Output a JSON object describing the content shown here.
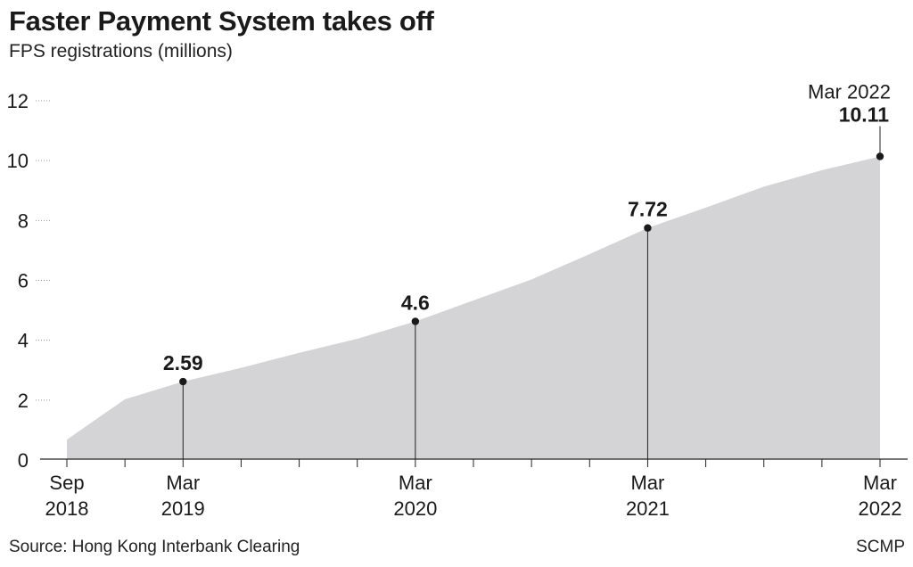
{
  "chart": {
    "title": "Faster Payment System takes off",
    "subtitle": "FPS registrations (millions)",
    "source": "Source: Hong Kong Interbank Clearing",
    "credit": "SCMP"
  },
  "colors": {
    "area_fill": "#d4d4d6",
    "marker": "#1a1a1a",
    "text": "#1a1a1a",
    "gridline": "#9a9a9a"
  },
  "chart_data": {
    "type": "area",
    "series": [
      {
        "x": [
          "2018-09",
          "2018-12",
          "2019-03",
          "2019-06",
          "2019-09",
          "2019-12",
          "2020-03",
          "2020-06",
          "2020-09",
          "2020-12",
          "2021-03",
          "2021-06",
          "2021-09",
          "2021-12",
          "2022-03"
        ],
        "values": [
          0.65,
          2.0,
          2.59,
          3.05,
          3.55,
          4.02,
          4.6,
          5.3,
          6.0,
          6.85,
          7.72,
          8.4,
          9.1,
          9.65,
          10.11
        ]
      }
    ],
    "ylim": [
      0,
      12
    ],
    "y_ticks": [
      0,
      2,
      4,
      6,
      8,
      10,
      12
    ],
    "x_tick_labels": [
      {
        "x": "2018-09",
        "month": "Sep",
        "year": "2018"
      },
      {
        "x": "2019-03",
        "month": "Mar",
        "year": "2019"
      },
      {
        "x": "2020-03",
        "month": "Mar",
        "year": "2020"
      },
      {
        "x": "2021-03",
        "month": "Mar",
        "year": "2021"
      },
      {
        "x": "2022-03",
        "month": "Mar",
        "year": "2022"
      }
    ],
    "annotations": [
      {
        "x": "2019-03",
        "value": 2.59,
        "label": "2.59"
      },
      {
        "x": "2020-03",
        "value": 4.6,
        "label": "4.6"
      },
      {
        "x": "2021-03",
        "value": 7.72,
        "label": "7.72"
      },
      {
        "x": "2022-03",
        "value": 10.11,
        "label": "10.11",
        "date_label": "Mar 2022"
      }
    ],
    "grid": "dotted y-tick leaders only"
  }
}
